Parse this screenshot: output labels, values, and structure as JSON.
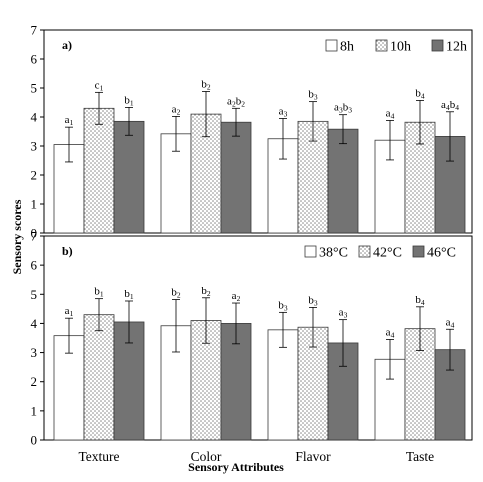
{
  "figure": {
    "ylabel": "Sensory scores",
    "xlabel": "Sensory Attributes"
  },
  "pattern_colors": {
    "white": "#ffffff",
    "dotted_bg": "#ffffff",
    "dotted_fg": "#7f7f7f",
    "grey": "#737373",
    "edge": "#3a3a3a"
  },
  "chart_data": [
    {
      "type": "bar",
      "panel_label": "a)",
      "categories": [
        "Texture",
        "Color",
        "Flavor",
        "Taste"
      ],
      "ylim": [
        0,
        7
      ],
      "yticks": [
        0,
        1,
        2,
        3,
        4,
        5,
        6,
        7
      ],
      "legend_position": "top-right",
      "series": [
        {
          "name": "8h",
          "fill": "white",
          "values": [
            3.05,
            3.42,
            3.25,
            3.2
          ],
          "errors": [
            0.6,
            0.6,
            0.7,
            0.68
          ],
          "labels": [
            [
              "a",
              "1"
            ],
            [
              "a",
              "2"
            ],
            [
              "a",
              "3"
            ],
            [
              "a",
              "4"
            ]
          ]
        },
        {
          "name": "10h",
          "fill": "dotted",
          "values": [
            4.3,
            4.1,
            3.85,
            3.82
          ],
          "errors": [
            0.55,
            0.78,
            0.68,
            0.75
          ],
          "labels": [
            [
              "c",
              "1"
            ],
            [
              "b",
              "2"
            ],
            [
              "b",
              "3"
            ],
            [
              "b",
              "4"
            ]
          ]
        },
        {
          "name": "12h",
          "fill": "grey",
          "values": [
            3.85,
            3.82,
            3.58,
            3.33
          ],
          "errors": [
            0.48,
            0.48,
            0.5,
            0.85
          ],
          "labels": [
            [
              "b",
              "1"
            ],
            [
              "a",
              "2",
              "b",
              "2"
            ],
            [
              "a",
              "3",
              "b",
              "3"
            ],
            [
              "a",
              "4",
              "b",
              "4"
            ]
          ]
        }
      ]
    },
    {
      "type": "bar",
      "panel_label": "b)",
      "categories": [
        "Texture",
        "Color",
        "Flavor",
        "Taste"
      ],
      "ylim": [
        0,
        7
      ],
      "yticks": [
        0,
        1,
        2,
        3,
        4,
        5,
        6,
        7
      ],
      "legend_position": "top-right",
      "series": [
        {
          "name": "38°C",
          "fill": "white",
          "values": [
            3.58,
            3.92,
            3.78,
            2.77
          ],
          "errors": [
            0.6,
            0.9,
            0.6,
            0.68
          ],
          "labels": [
            [
              "a",
              "1"
            ],
            [
              "b",
              "2"
            ],
            [
              "b",
              "3"
            ],
            [
              "a",
              "4"
            ]
          ]
        },
        {
          "name": "42°C",
          "fill": "dotted",
          "values": [
            4.3,
            4.1,
            3.87,
            3.82
          ],
          "errors": [
            0.55,
            0.78,
            0.68,
            0.75
          ],
          "labels": [
            [
              "b",
              "1"
            ],
            [
              "b",
              "2"
            ],
            [
              "b",
              "3"
            ],
            [
              "b",
              "4"
            ]
          ]
        },
        {
          "name": "46°C",
          "fill": "grey",
          "values": [
            4.05,
            4.0,
            3.33,
            3.1
          ],
          "errors": [
            0.72,
            0.7,
            0.8,
            0.7
          ],
          "labels": [
            [
              "b",
              "1"
            ],
            [
              "a",
              "2"
            ],
            [
              "a",
              "3"
            ],
            [
              "a",
              "4"
            ]
          ]
        }
      ]
    }
  ]
}
